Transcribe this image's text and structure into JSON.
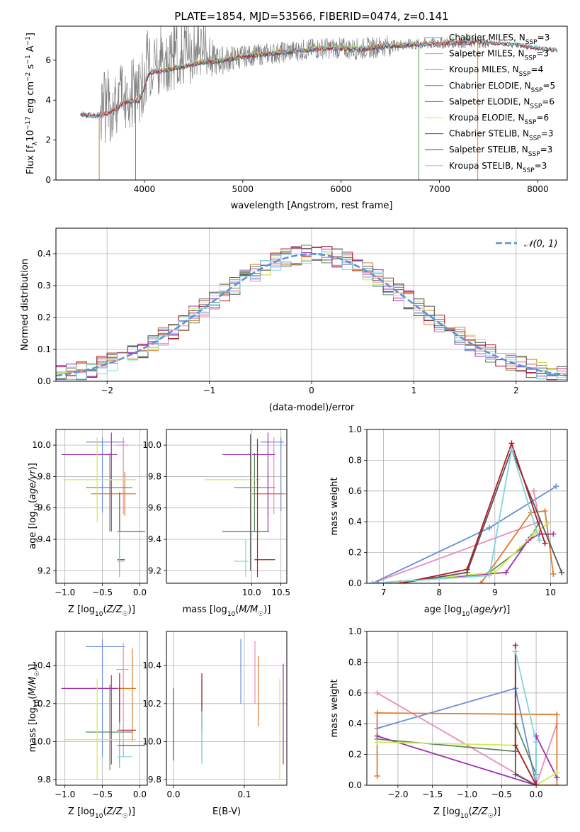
{
  "palette": {
    "Chabrier MILES": "#6a8fd8",
    "Salpeter MILES": "#e98bbf",
    "Kroupa MILES": "#e07a2e",
    "Chabrier ELODIE": "#5c8a5c",
    "Salpeter ELODIE": "#a22eb0",
    "Kroupa ELODIE": "#cfe85a",
    "Chabrier STELIB": "#555555",
    "Salpeter STELIB": "#b01a22",
    "Kroupa STELIB": "#7fd6dc",
    "raw_spectrum": "#7f7f7f",
    "normal_curve": "#5b8fd8"
  },
  "chart_data": [
    {
      "id": "spectrum",
      "type": "line",
      "title": "PLATE=1854, MJD=53566, FIBERID=0474, z=0.141",
      "xlabel": "wavelength [Angstrom, rest frame]",
      "ylabel": "Flux [fλ10⁻¹⁷ erg cm⁻² s⁻¹ A⁻¹]",
      "xlim": [
        3100,
        8300
      ],
      "ylim": [
        0,
        7.7
      ],
      "xticks": [
        4000,
        5000,
        6000,
        7000,
        8000
      ],
      "yticks": [
        0,
        2,
        4,
        6
      ],
      "continuum": {
        "x": [
          3350,
          3500,
          3650,
          3800,
          3950,
          4050,
          4200,
          4400,
          4600,
          4800,
          5000,
          5200,
          5400,
          5600,
          5800,
          6000,
          6200,
          6400,
          6600,
          6800,
          7000,
          7200,
          7400,
          7600,
          7800,
          8000,
          8200
        ],
        "y": [
          3.3,
          3.2,
          3.4,
          3.9,
          4.0,
          5.4,
          5.5,
          5.7,
          5.9,
          6.0,
          6.2,
          6.3,
          6.4,
          6.5,
          6.6,
          6.6,
          6.55,
          6.7,
          6.75,
          6.8,
          6.85,
          6.9,
          6.9,
          6.85,
          6.75,
          6.6,
          6.5
        ]
      },
      "legend_position": "upper-right",
      "series": [
        {
          "name": "Chabrier MILES",
          "n_ssp": "3",
          "xrange": [
            3500,
            7350
          ],
          "dips": []
        },
        {
          "name": "Salpeter MILES",
          "n_ssp": "3",
          "xrange": [
            3500,
            7350
          ],
          "dips": []
        },
        {
          "name": "Kroupa MILES",
          "n_ssp": "4",
          "xrange": [
            3500,
            7400
          ],
          "dips": [
            3540,
            7390
          ]
        },
        {
          "name": "Chabrier ELODIE",
          "n_ssp": "5",
          "xrange": [
            3900,
            6800
          ],
          "dips": [
            3910,
            6790
          ]
        },
        {
          "name": "Salpeter ELODIE",
          "n_ssp": "6",
          "xrange": [
            3900,
            6800
          ],
          "dips": []
        },
        {
          "name": "Kroupa ELODIE",
          "n_ssp": "6",
          "xrange": [
            3900,
            6800
          ],
          "dips": []
        },
        {
          "name": "Chabrier STELIB",
          "n_ssp": "3",
          "xrange": [
            3350,
            8200
          ],
          "dips": []
        },
        {
          "name": "Salpeter STELIB",
          "n_ssp": "3",
          "xrange": [
            3350,
            8200
          ],
          "dips": []
        },
        {
          "name": "Kroupa STELIB",
          "n_ssp": "3",
          "xrange": [
            3350,
            8200
          ],
          "dips": []
        }
      ]
    },
    {
      "id": "residuals",
      "type": "histogram",
      "xlabel": "(data-model)/error",
      "ylabel": "Normed distribution",
      "xlim": [
        -2.5,
        2.5
      ],
      "ylim": [
        0,
        0.48
      ],
      "xticks": [
        -2,
        -1,
        0,
        1,
        2
      ],
      "yticks": [
        0.0,
        0.1,
        0.2,
        0.3,
        0.4
      ],
      "bins": [
        -2.5,
        -2.4,
        -2.3,
        -2.2,
        -2.1,
        -2.0,
        -1.9,
        -1.8,
        -1.7,
        -1.6,
        -1.5,
        -1.4,
        -1.3,
        -1.2,
        -1.1,
        -1.0,
        -0.9,
        -0.8,
        -0.7,
        -0.6,
        -0.5,
        -0.4,
        -0.3,
        -0.2,
        -0.1,
        0.0,
        0.1,
        0.2,
        0.3,
        0.4,
        0.5,
        0.6,
        0.7,
        0.8,
        0.9,
        1.0,
        1.1,
        1.2,
        1.3,
        1.4,
        1.5,
        1.6,
        1.7,
        1.8,
        1.9,
        2.0,
        2.1,
        2.2,
        2.3,
        2.4,
        2.5
      ],
      "reference": {
        "name": "𝒩(0, 1)",
        "type": "gaussian",
        "mean": 0,
        "sigma": 1
      },
      "legend_position": "upper-right",
      "grid": true
    },
    {
      "id": "age-vs-z",
      "type": "errorbar",
      "xlabel": "Z [log10(Z/Z☉)]",
      "ylabel": "age [log10(age/yr)]",
      "xlim": [
        -1.12,
        0.1
      ],
      "ylim": [
        9.12,
        10.1
      ],
      "xticks": [
        -1.0,
        -0.5,
        0.0
      ],
      "yticks": [
        9.2,
        9.4,
        9.6,
        9.8,
        10.0
      ],
      "grid": true
    },
    {
      "id": "age-vs-mass",
      "type": "errorbar",
      "xlabel": "mass [log10(M/M☉)]",
      "xlim": [
        8.55,
        10.6
      ],
      "ylim": [
        9.12,
        10.1
      ],
      "xticks": [
        10.0,
        10.5
      ],
      "yticks": [
        9.2,
        9.4,
        9.6,
        9.8,
        10.0
      ],
      "grid": true
    },
    {
      "id": "weight-vs-age",
      "type": "line",
      "xlabel": "age [log10(age/yr)]",
      "ylabel": "mass weight",
      "xlim": [
        6.7,
        10.3
      ],
      "ylim": [
        0,
        1.0
      ],
      "xticks": [
        7,
        8,
        9,
        10
      ],
      "yticks": [
        0.0,
        0.2,
        0.4,
        0.6,
        0.8,
        1.0
      ],
      "grid": true,
      "series": [
        {
          "name": "Chabrier MILES",
          "x": [
            6.8,
            8.9,
            10.1
          ],
          "y": [
            0.0,
            0.36,
            0.63
          ]
        },
        {
          "name": "Salpeter MILES",
          "x": [
            6.8,
            9.8,
            9.7
          ],
          "y": [
            0.0,
            0.4,
            0.6
          ]
        },
        {
          "name": "Kroupa MILES",
          "x": [
            8.75,
            9.65,
            9.9,
            10.05
          ],
          "y": [
            0.0,
            0.46,
            0.47,
            0.06
          ]
        },
        {
          "name": "Chabrier ELODIE",
          "x": [
            8.9,
            9.45,
            9.65,
            9.8
          ],
          "y": [
            0.07,
            0.22,
            0.3,
            0.4
          ]
        },
        {
          "name": "Salpeter ELODIE",
          "x": [
            6.9,
            9.2,
            9.6,
            9.8,
            10.05
          ],
          "y": [
            0.0,
            0.07,
            0.28,
            0.32,
            0.32
          ]
        },
        {
          "name": "Kroupa ELODIE",
          "x": [
            6.85,
            9.0,
            9.7,
            9.95
          ],
          "y": [
            0.0,
            0.07,
            0.32,
            0.39
          ]
        },
        {
          "name": "Chabrier STELIB",
          "x": [
            7.3,
            8.5,
            9.3,
            10.2
          ],
          "y": [
            0.0,
            0.07,
            0.87,
            0.07
          ]
        },
        {
          "name": "Salpeter STELIB",
          "x": [
            7.3,
            8.5,
            9.3,
            9.9
          ],
          "y": [
            0.0,
            0.09,
            0.91,
            0.26
          ]
        },
        {
          "name": "Kroupa STELIB",
          "x": [
            6.8,
            8.9,
            9.3,
            9.8
          ],
          "y": [
            0.0,
            0.05,
            0.87,
            0.28
          ]
        }
      ]
    },
    {
      "id": "mass-vs-z",
      "type": "errorbar",
      "xlabel": "Z [log10(Z/Z☉)]",
      "ylabel": "mass [log10(M/M☉)]",
      "xlim": [
        -1.12,
        0.1
      ],
      "ylim": [
        9.77,
        10.58
      ],
      "xticks": [
        -1.0,
        -0.5,
        0.0
      ],
      "yticks": [
        9.8,
        10.0,
        10.2,
        10.4
      ],
      "grid": true
    },
    {
      "id": "mass-vs-ebv",
      "type": "errorbar",
      "xlabel": "E(B-V)",
      "xlim": [
        -0.01,
        0.16
      ],
      "ylim": [
        9.77,
        10.58
      ],
      "xticks": [
        0.0,
        0.1
      ],
      "yticks": [
        9.8,
        10.0,
        10.2,
        10.4
      ],
      "grid": true
    },
    {
      "id": "weight-vs-z",
      "type": "line",
      "xlabel": "Z [log10(Z/Z☉)]",
      "ylabel": "mass weight",
      "xlim": [
        -2.45,
        0.45
      ],
      "ylim": [
        0,
        1.0
      ],
      "xticks": [
        -2.0,
        -1.5,
        -1.0,
        -0.5,
        0.0
      ],
      "yticks": [
        0.0,
        0.2,
        0.4,
        0.6,
        0.8,
        1.0
      ],
      "grid": true,
      "series": [
        {
          "name": "Chabrier MILES",
          "x": [
            -2.3,
            -0.3,
            0.0
          ],
          "y": [
            0.37,
            0.63,
            0.0
          ]
        },
        {
          "name": "Salpeter MILES",
          "x": [
            -2.3,
            0.0,
            0.3
          ],
          "y": [
            0.6,
            0.0,
            0.4
          ]
        },
        {
          "name": "Kroupa MILES",
          "x": [
            -2.3,
            -2.3,
            0.3,
            0.3,
            0.0
          ],
          "y": [
            0.06,
            0.47,
            0.46,
            0.0,
            0.0
          ]
        },
        {
          "name": "Chabrier ELODIE",
          "x": [
            -2.3,
            -0.3,
            -0.3,
            0.0
          ],
          "y": [
            0.3,
            0.22,
            0.4,
            0.07
          ]
        },
        {
          "name": "Salpeter ELODIE",
          "x": [
            -2.3,
            0.0,
            0.0,
            0.3
          ],
          "y": [
            0.32,
            0.0,
            0.32,
            0.05
          ]
        },
        {
          "name": "Kroupa ELODIE",
          "x": [
            -2.3,
            -0.3,
            0.0,
            0.3
          ],
          "y": [
            0.28,
            0.26,
            0.0,
            0.08
          ]
        },
        {
          "name": "Chabrier STELIB",
          "x": [
            -0.3,
            -0.3,
            0.0
          ],
          "y": [
            0.87,
            0.07,
            0.0
          ]
        },
        {
          "name": "Salpeter STELIB",
          "x": [
            -0.3,
            -0.3,
            0.0
          ],
          "y": [
            0.91,
            0.26,
            0.0
          ]
        },
        {
          "name": "Kroupa STELIB",
          "x": [
            -0.3,
            0.0,
            0.0
          ],
          "y": [
            0.87,
            0.28,
            0.05
          ]
        }
      ]
    }
  ]
}
